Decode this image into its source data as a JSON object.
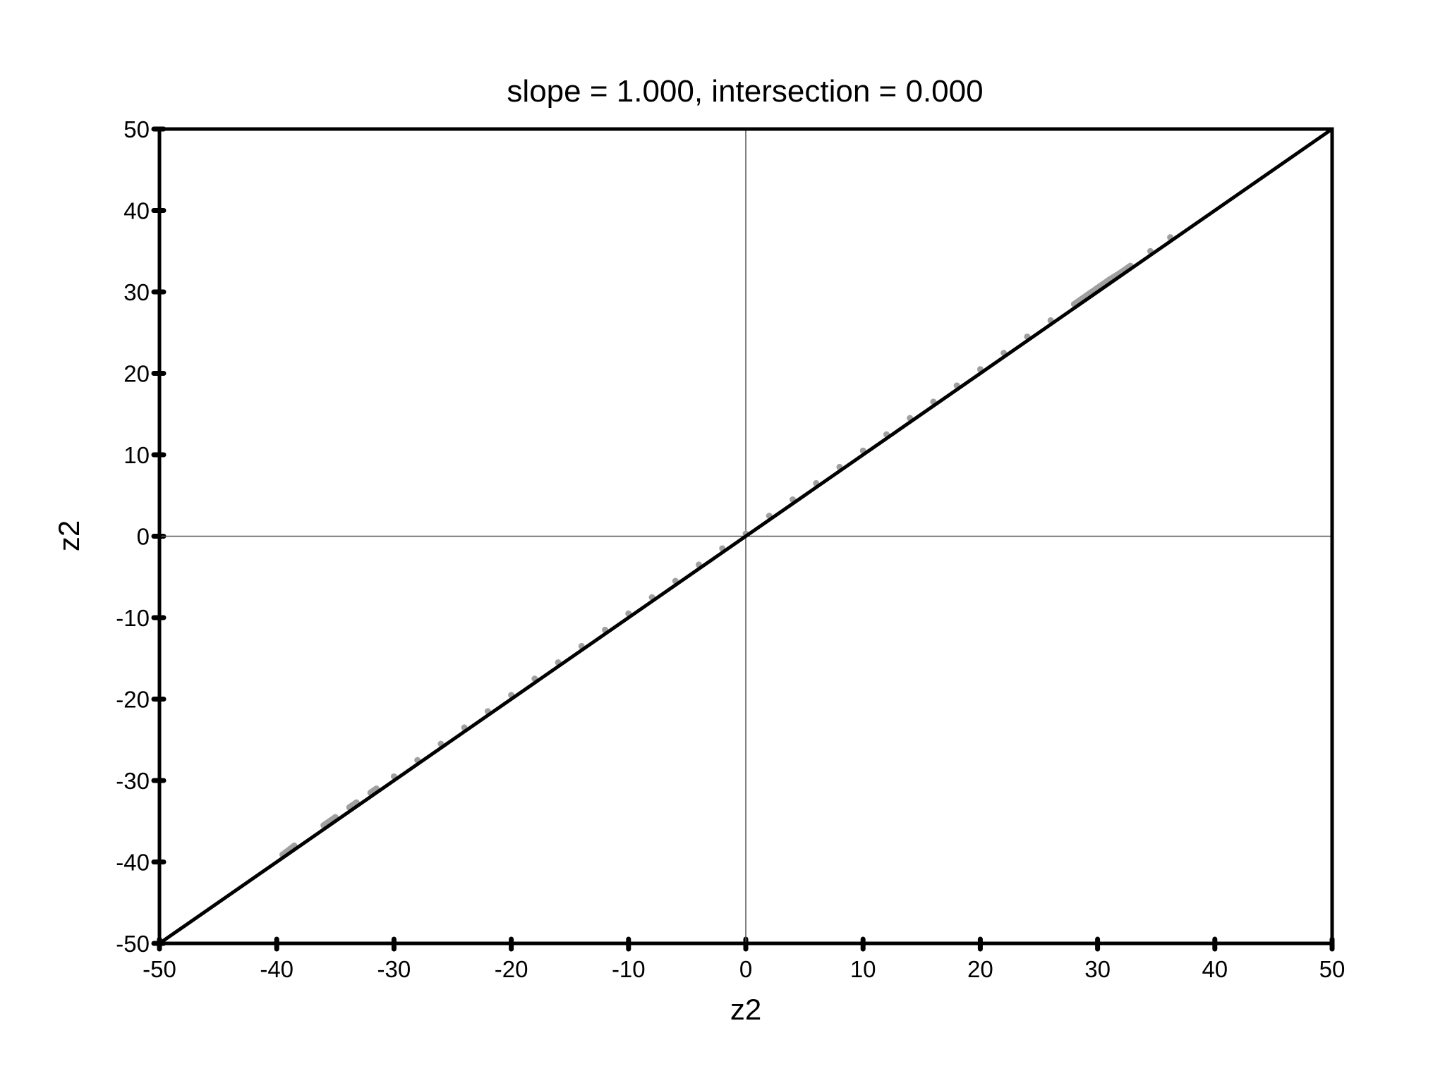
{
  "chart_data": {
    "type": "scatter",
    "title": "slope = 1.000, intersection = 0.000",
    "xlabel": "z2",
    "ylabel": "z2",
    "xlim": [
      -50,
      50
    ],
    "ylim": [
      -50,
      50
    ],
    "xticks": [
      -50,
      -40,
      -30,
      -20,
      -10,
      0,
      10,
      20,
      30,
      40,
      50
    ],
    "yticks": [
      -50,
      -40,
      -30,
      -20,
      -10,
      0,
      10,
      20,
      30,
      40,
      50
    ],
    "grid": false,
    "zero_lines": true,
    "series": [
      {
        "kind": "points",
        "color": "#a0a0a0",
        "x": [
          -39.5,
          -38.5,
          -36.0,
          -35.0,
          -33.8,
          -33.2,
          -32.0,
          -31.5,
          -30.0,
          -28.0,
          -26.0,
          -24.0,
          -22.0,
          -20.0,
          -18.0,
          -16.0,
          -14.0,
          -12.0,
          -10.0,
          -8.0,
          -6.0,
          -4.0,
          -2.0,
          0.0,
          2.0,
          4.0,
          6.0,
          8.0,
          10.0,
          12.0,
          14.0,
          16.0,
          18.0,
          20.0,
          22.0,
          24.0,
          26.0,
          28.0,
          29.0,
          30.0,
          31.0,
          32.0,
          32.8,
          34.5,
          36.2
        ],
        "y": [
          -39.1,
          -38.0,
          -35.5,
          -34.5,
          -33.3,
          -32.7,
          -31.5,
          -31.0,
          -29.5,
          -27.5,
          -25.5,
          -23.5,
          -21.5,
          -19.5,
          -17.5,
          -15.5,
          -13.5,
          -11.5,
          -9.5,
          -7.5,
          -5.5,
          -3.5,
          -1.5,
          0.3,
          2.5,
          4.5,
          6.5,
          8.5,
          10.5,
          12.5,
          14.5,
          16.5,
          18.5,
          20.5,
          22.5,
          24.5,
          26.5,
          28.5,
          29.5,
          30.5,
          31.5,
          32.4,
          33.2,
          35.0,
          36.7
        ]
      },
      {
        "kind": "line",
        "color": "#000000",
        "x": [
          -50,
          50
        ],
        "y": [
          -50,
          50
        ]
      }
    ]
  }
}
